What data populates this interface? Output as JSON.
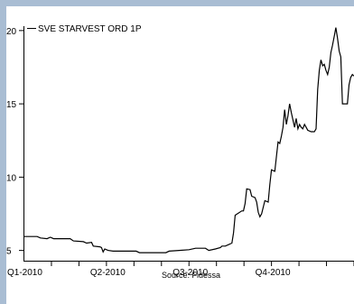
{
  "chart_data": {
    "type": "line",
    "title": "",
    "xlabel": "",
    "ylabel": "",
    "source": "Source: Fidessa",
    "legend": {
      "label": "SVE STARVEST ORD 1P",
      "placement": "top-left"
    },
    "x_tick_labels": [
      "Q1-2010",
      "Q2-2010",
      "Q3-2010",
      "Q4-2010"
    ],
    "y_ticks": [
      5,
      10,
      15,
      20
    ],
    "ylim": [
      4.3,
      20.3
    ],
    "series": [
      {
        "name": "SVE STARVEST ORD 1P",
        "color": "#000000",
        "points": [
          [
            0.0,
            5.95
          ],
          [
            0.04,
            5.95
          ],
          [
            0.05,
            5.85
          ],
          [
            0.07,
            5.8
          ],
          [
            0.08,
            5.9
          ],
          [
            0.09,
            5.8
          ],
          [
            0.14,
            5.8
          ],
          [
            0.15,
            5.65
          ],
          [
            0.18,
            5.6
          ],
          [
            0.19,
            5.5
          ],
          [
            0.205,
            5.55
          ],
          [
            0.21,
            5.3
          ],
          [
            0.23,
            5.25
          ],
          [
            0.235,
            5.2
          ],
          [
            0.24,
            4.9
          ],
          [
            0.245,
            5.1
          ],
          [
            0.255,
            5.0
          ],
          [
            0.27,
            4.95
          ],
          [
            0.3,
            4.95
          ],
          [
            0.34,
            4.95
          ],
          [
            0.35,
            4.85
          ],
          [
            0.38,
            4.85
          ],
          [
            0.43,
            4.85
          ],
          [
            0.44,
            4.95
          ],
          [
            0.47,
            5.0
          ],
          [
            0.5,
            5.05
          ],
          [
            0.52,
            5.15
          ],
          [
            0.55,
            5.15
          ],
          [
            0.56,
            5.0
          ],
          [
            0.58,
            5.1
          ],
          [
            0.595,
            5.2
          ],
          [
            0.6,
            5.3
          ],
          [
            0.61,
            5.3
          ],
          [
            0.63,
            5.5
          ],
          [
            0.635,
            6.2
          ],
          [
            0.64,
            7.4
          ],
          [
            0.66,
            7.7
          ],
          [
            0.665,
            7.7
          ],
          [
            0.67,
            8.2
          ],
          [
            0.675,
            9.2
          ],
          [
            0.685,
            9.15
          ],
          [
            0.69,
            8.7
          ],
          [
            0.7,
            8.6
          ],
          [
            0.705,
            8.3
          ],
          [
            0.71,
            7.6
          ],
          [
            0.715,
            7.3
          ],
          [
            0.72,
            7.5
          ],
          [
            0.73,
            8.4
          ],
          [
            0.74,
            8.3
          ],
          [
            0.745,
            9.5
          ],
          [
            0.75,
            10.5
          ],
          [
            0.76,
            10.4
          ],
          [
            0.765,
            11.4
          ],
          [
            0.77,
            12.4
          ],
          [
            0.775,
            12.3
          ],
          [
            0.78,
            12.8
          ],
          [
            0.785,
            13.4
          ],
          [
            0.79,
            14.6
          ],
          [
            0.795,
            13.6
          ],
          [
            0.8,
            14.2
          ],
          [
            0.805,
            15.0
          ],
          [
            0.81,
            14.4
          ],
          [
            0.815,
            13.9
          ],
          [
            0.82,
            13.4
          ],
          [
            0.825,
            14.0
          ],
          [
            0.83,
            13.3
          ],
          [
            0.835,
            13.6
          ],
          [
            0.84,
            13.4
          ],
          [
            0.845,
            13.3
          ],
          [
            0.85,
            13.6
          ],
          [
            0.855,
            13.4
          ],
          [
            0.86,
            13.2
          ],
          [
            0.87,
            13.1
          ],
          [
            0.88,
            13.1
          ],
          [
            0.885,
            13.3
          ],
          [
            0.89,
            16.0
          ],
          [
            0.895,
            17.3
          ],
          [
            0.9,
            18.0
          ],
          [
            0.905,
            17.6
          ],
          [
            0.91,
            17.7
          ],
          [
            0.915,
            17.3
          ],
          [
            0.92,
            17.0
          ],
          [
            0.925,
            17.5
          ],
          [
            0.93,
            18.5
          ],
          [
            0.935,
            19.0
          ],
          [
            0.94,
            19.6
          ],
          [
            0.945,
            20.2
          ],
          [
            0.95,
            19.5
          ],
          [
            0.955,
            18.6
          ],
          [
            0.96,
            18.2
          ],
          [
            0.965,
            15.0
          ],
          [
            0.975,
            15.0
          ],
          [
            0.98,
            15.0
          ],
          [
            0.985,
            16.3
          ],
          [
            0.99,
            16.8
          ],
          [
            0.995,
            17.0
          ],
          [
            1.0,
            16.9
          ]
        ]
      }
    ],
    "grid": false
  }
}
